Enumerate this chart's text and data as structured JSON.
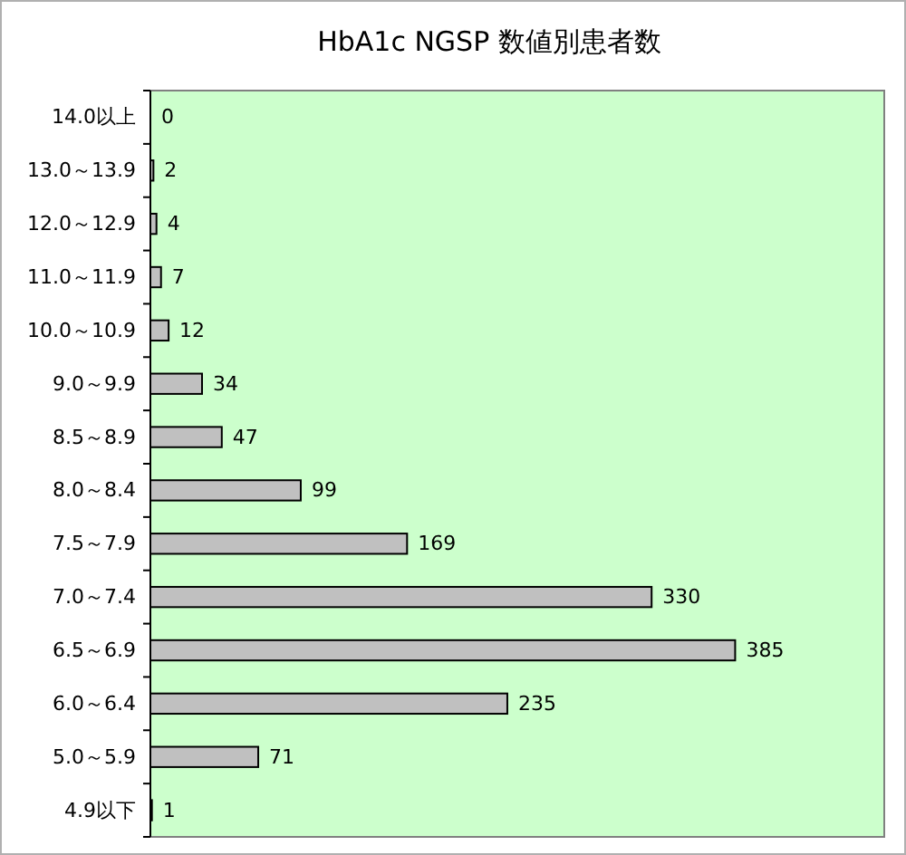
{
  "chart_data": {
    "type": "bar",
    "orientation": "horizontal",
    "title": "HbA1c NGSP 数値別患者数",
    "categories": [
      "14.0以上",
      "13.0～13.9",
      "12.0～12.9",
      "11.0～11.9",
      "10.0～10.9",
      "9.0～9.9",
      "8.5～8.9",
      "8.0～8.4",
      "7.5～7.9",
      "7.0～7.4",
      "6.5～6.9",
      "6.0～6.4",
      "5.0～5.9",
      "4.9以下"
    ],
    "values": [
      0,
      2,
      4,
      7,
      12,
      34,
      47,
      99,
      169,
      330,
      385,
      235,
      71,
      1
    ],
    "color": "#c0c0c0",
    "data_labels": true
  }
}
